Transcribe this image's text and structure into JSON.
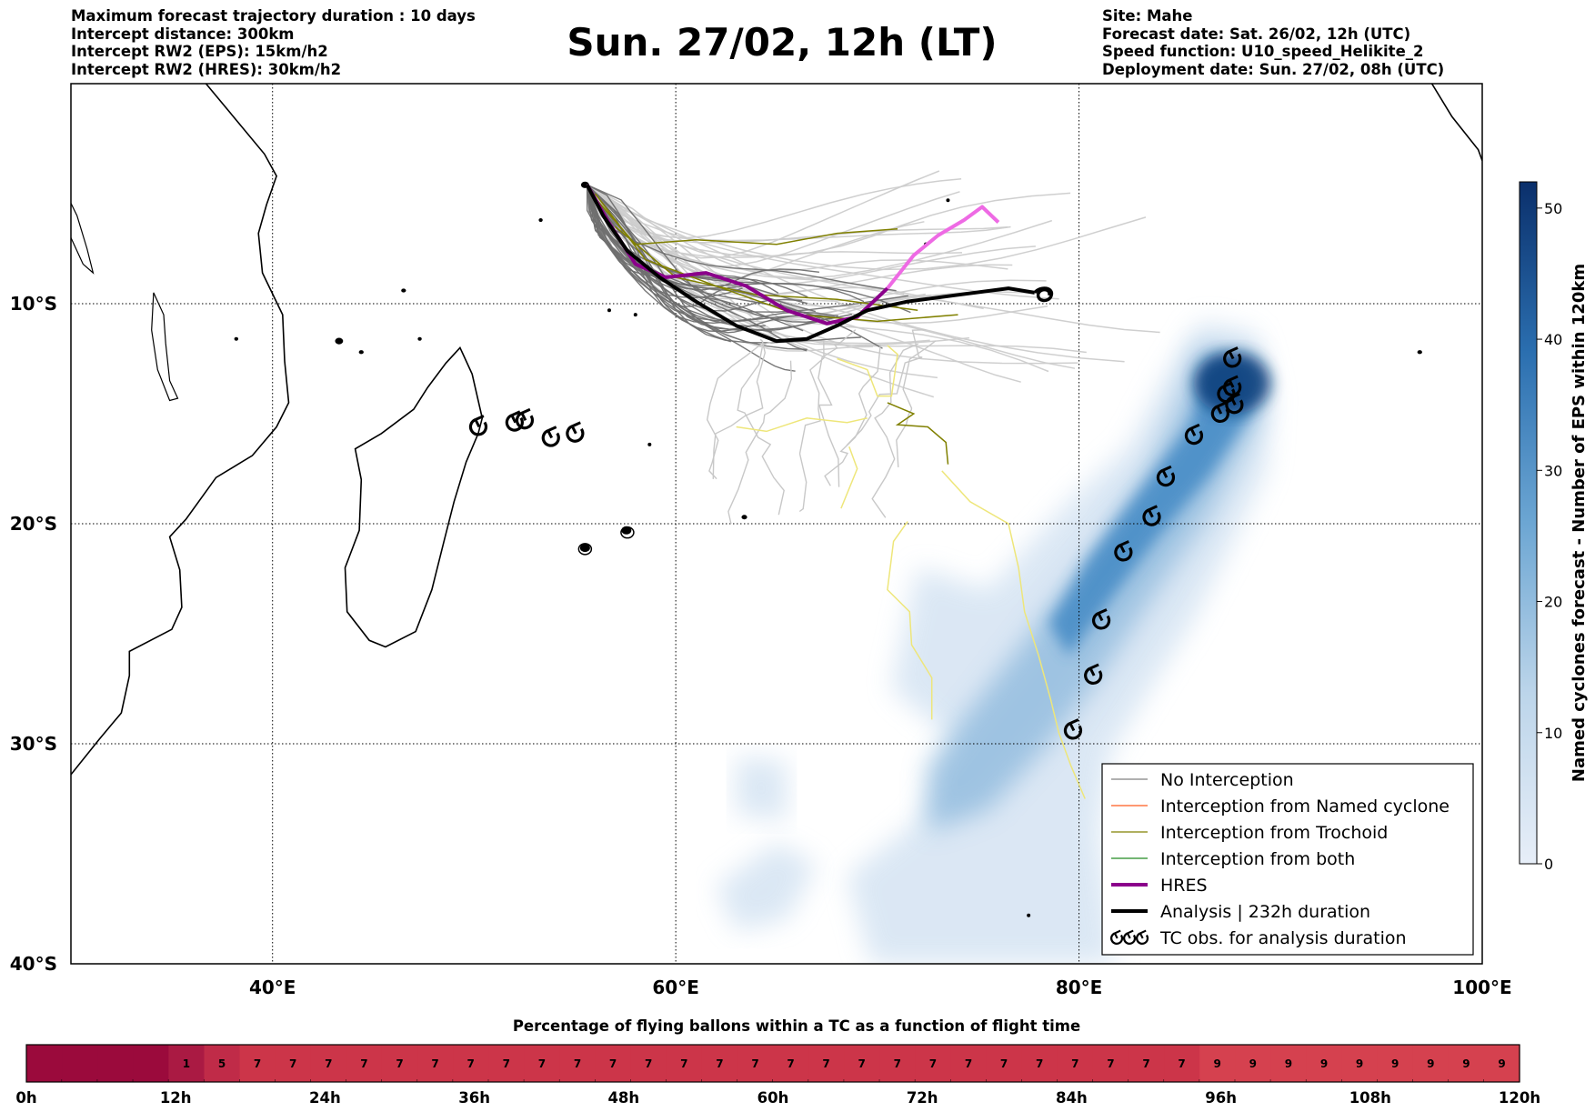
{
  "header": {
    "left_lines": [
      "Maximum forecast trajectory duration : 10 days",
      "Intercept distance: 300km",
      "Intercept RW2 (EPS):  15km/h2",
      "Intercept RW2 (HRES): 30km/h2"
    ],
    "title": "Sun. 27/02, 12h (LT)",
    "right_lines": [
      "Site: Mahe",
      "Forecast date: Sat. 26/02, 12h (UTC)",
      "Speed function: U10_speed_Helikite_2",
      "Deployment date: Sun. 27/02, 08h (UTC)"
    ]
  },
  "map": {
    "lon_range": [
      30,
      100
    ],
    "lat_range": [
      0,
      -40
    ],
    "lon_ticks": [
      {
        "value": 40,
        "label": "40°E"
      },
      {
        "value": 60,
        "label": "60°E"
      },
      {
        "value": 80,
        "label": "80°E"
      },
      {
        "value": 100,
        "label": "100°E"
      }
    ],
    "lat_ticks": [
      {
        "value": -10,
        "label": "10°S"
      },
      {
        "value": -20,
        "label": "20°S"
      },
      {
        "value": -30,
        "label": "30°S"
      },
      {
        "value": -40,
        "label": "40°S"
      }
    ],
    "site": {
      "name": "Mahe",
      "lon": 55.5,
      "lat": -4.6
    }
  },
  "legend": {
    "items": [
      {
        "label": "No Interception",
        "color": "#808080",
        "style": "thin"
      },
      {
        "label": "Interception from Named cyclone",
        "color": "#ff5a1e",
        "style": "thin"
      },
      {
        "label": "Interception from Trochoid",
        "color": "#808000",
        "style": "thin"
      },
      {
        "label": "Interception from both",
        "color": "#228b22",
        "style": "thin"
      },
      {
        "label": "HRES",
        "color": "#8b008b",
        "style": "thick"
      },
      {
        "label": "Analysis | 232h duration",
        "color": "#000000",
        "style": "thick"
      },
      {
        "label": "TC obs. for analysis duration",
        "color": "#000000",
        "style": "cyclone"
      }
    ]
  },
  "colorbar": {
    "label": "Named cyclones forecast - Number of EPS within 120km",
    "ticks": [
      "0",
      "10",
      "20",
      "30",
      "40",
      "50"
    ],
    "max": 52,
    "color_low": "#e7eef8",
    "color_high": "#0a2f6b"
  },
  "analysis_track": [
    [
      55.6,
      -4.6
    ],
    [
      56.4,
      -6.0
    ],
    [
      57.6,
      -7.6
    ],
    [
      59.2,
      -8.8
    ],
    [
      61.0,
      -9.9
    ],
    [
      63.0,
      -11.0
    ],
    [
      65.0,
      -11.7
    ],
    [
      66.5,
      -11.6
    ],
    [
      68.0,
      -11.0
    ],
    [
      69.5,
      -10.3
    ],
    [
      71.5,
      -9.9
    ],
    [
      74.0,
      -9.6
    ],
    [
      76.5,
      -9.3
    ],
    [
      77.8,
      -9.5
    ]
  ],
  "hres_track": [
    [
      55.6,
      -4.6
    ],
    [
      56.6,
      -6.2
    ],
    [
      58.0,
      -8.2
    ],
    [
      59.5,
      -8.8
    ],
    [
      61.5,
      -8.6
    ],
    [
      63.5,
      -9.2
    ],
    [
      65.5,
      -10.3
    ],
    [
      67.5,
      -10.9
    ],
    [
      69.0,
      -10.6
    ],
    [
      70.5,
      -9.3
    ],
    [
      71.8,
      -7.8
    ],
    [
      73.0,
      -6.9
    ],
    [
      74.3,
      -6.2
    ],
    [
      75.2,
      -5.6
    ],
    [
      76.0,
      -6.3
    ]
  ],
  "cyclone_obs": [
    [
      50.2,
      -15.6
    ],
    [
      52.0,
      -15.4
    ],
    [
      52.5,
      -15.3
    ],
    [
      53.8,
      -16.1
    ],
    [
      55.0,
      -15.9
    ],
    [
      79.7,
      -29.4
    ],
    [
      80.7,
      -26.9
    ],
    [
      81.1,
      -24.4
    ],
    [
      82.2,
      -21.3
    ],
    [
      83.6,
      -19.7
    ],
    [
      84.3,
      -17.9
    ],
    [
      85.7,
      -16.0
    ],
    [
      87.0,
      -15.0
    ],
    [
      87.3,
      -14.1
    ],
    [
      87.6,
      -13.8
    ],
    [
      87.7,
      -14.6
    ],
    [
      87.6,
      -12.5
    ]
  ],
  "bottom_bar": {
    "title": "Percentage of flying ballons within a TC as a function of flight time",
    "values": [
      "",
      "",
      "",
      "",
      "1",
      "5",
      "7",
      "7",
      "7",
      "7",
      "7",
      "7",
      "7",
      "7",
      "7",
      "7",
      "7",
      "7",
      "7",
      "7",
      "7",
      "7",
      "7",
      "7",
      "7",
      "7",
      "7",
      "7",
      "7",
      "7",
      "7",
      "7",
      "7",
      "9",
      "9",
      "9",
      "9",
      "9",
      "9",
      "9",
      "9",
      "9"
    ],
    "hours": [
      "0h",
      "12h",
      "24h",
      "36h",
      "48h",
      "60h",
      "72h",
      "84h",
      "96h",
      "108h",
      "120h"
    ]
  }
}
